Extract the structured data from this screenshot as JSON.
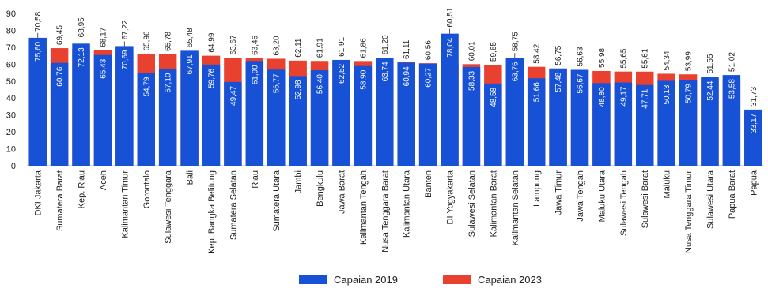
{
  "chart_data": {
    "type": "bar",
    "categories": [
      "DKI Jakarta",
      "Sumatera Barat",
      "Kep. Riau",
      "Aceh",
      "Kalimantan Timur",
      "Gorontalo",
      "Sulawesi Tenggara",
      "Bali",
      "Kep. Bangka Belitung",
      "Sumatera Selatan",
      "Riau",
      "Sumatera Utara",
      "Jambi",
      "Bengkulu",
      "Jawa Barat",
      "Kalimantan Tengah",
      "Nusa Tenggara Barat",
      "Kalimantan Utara",
      "Banten",
      "DI Yogyakarta",
      "Sulawesi Selatan",
      "Kalimantan Barat",
      "Kalimantan Selatan",
      "Lampung",
      "Jawa Timur",
      "Jawa Tengah",
      "Maluku Utara",
      "Sulawesi Tengah",
      "Sulawesi Barat",
      "Maluku",
      "Nusa Tenggara Timur",
      "Sulawesi Utara",
      "Papua Barat",
      "Papua"
    ],
    "series": [
      {
        "name": "Capaian 2019",
        "color": "#1751d6",
        "values": [
          75.6,
          60.76,
          72.13,
          65.43,
          70.69,
          54.79,
          57.1,
          67.91,
          59.76,
          49.47,
          61.9,
          56.77,
          52.98,
          56.4,
          62.52,
          58.9,
          63.74,
          60.94,
          60.27,
          78.04,
          58.33,
          48.58,
          63.76,
          51.66,
          57.48,
          56.67,
          48.8,
          49.17,
          47.71,
          50.13,
          50.79,
          52.44,
          53.58,
          33.17
        ],
        "value_labels": [
          "75,60",
          "60,76",
          "72,13",
          "65,43",
          "70,69",
          "54,79",
          "57,10",
          "67,91",
          "59,76",
          "49,47",
          "61,90",
          "56,77",
          "52,98",
          "56,40",
          "62,52",
          "58,90",
          "63,74",
          "60,94",
          "60,27",
          "78,04",
          "58,33",
          "48,58",
          "63,76",
          "51,66",
          "57,48",
          "56,67",
          "48,80",
          "49,17",
          "47,71",
          "50,13",
          "50,79",
          "52,44",
          "53,58",
          "33,17"
        ]
      },
      {
        "name": "Capaian 2023",
        "color": "#e8412f",
        "values": [
          70.58,
          69.45,
          68.95,
          68.17,
          67.22,
          65.96,
          65.78,
          65.48,
          64.99,
          63.67,
          63.46,
          63.2,
          62.11,
          61.91,
          61.91,
          61.86,
          61.2,
          61.11,
          60.56,
          60.51,
          60.01,
          59.65,
          58.75,
          58.42,
          56.75,
          56.63,
          55.98,
          55.65,
          55.61,
          54.34,
          53.99,
          51.55,
          51.02,
          31.73
        ],
        "value_labels": [
          "70,58",
          "69,45",
          "68,95",
          "68,17",
          "67,22",
          "65,96",
          "65,78",
          "65,48",
          "64,99",
          "63,67",
          "63,46",
          "63,20",
          "62,11",
          "61,91",
          "61,91",
          "61,86",
          "61,20",
          "61,11",
          "60,56",
          "60,51",
          "60,01",
          "59,65",
          "58,75",
          "58,42",
          "56,75",
          "56,63",
          "55,98",
          "55,65",
          "55,61",
          "54,34",
          "53,99",
          "51,55",
          "51,02",
          "31,73"
        ]
      }
    ],
    "ylim": [
      0,
      90
    ],
    "yticks": [
      0,
      10,
      20,
      30,
      40,
      50,
      60,
      70,
      80,
      90
    ],
    "legend": "bottom"
  }
}
